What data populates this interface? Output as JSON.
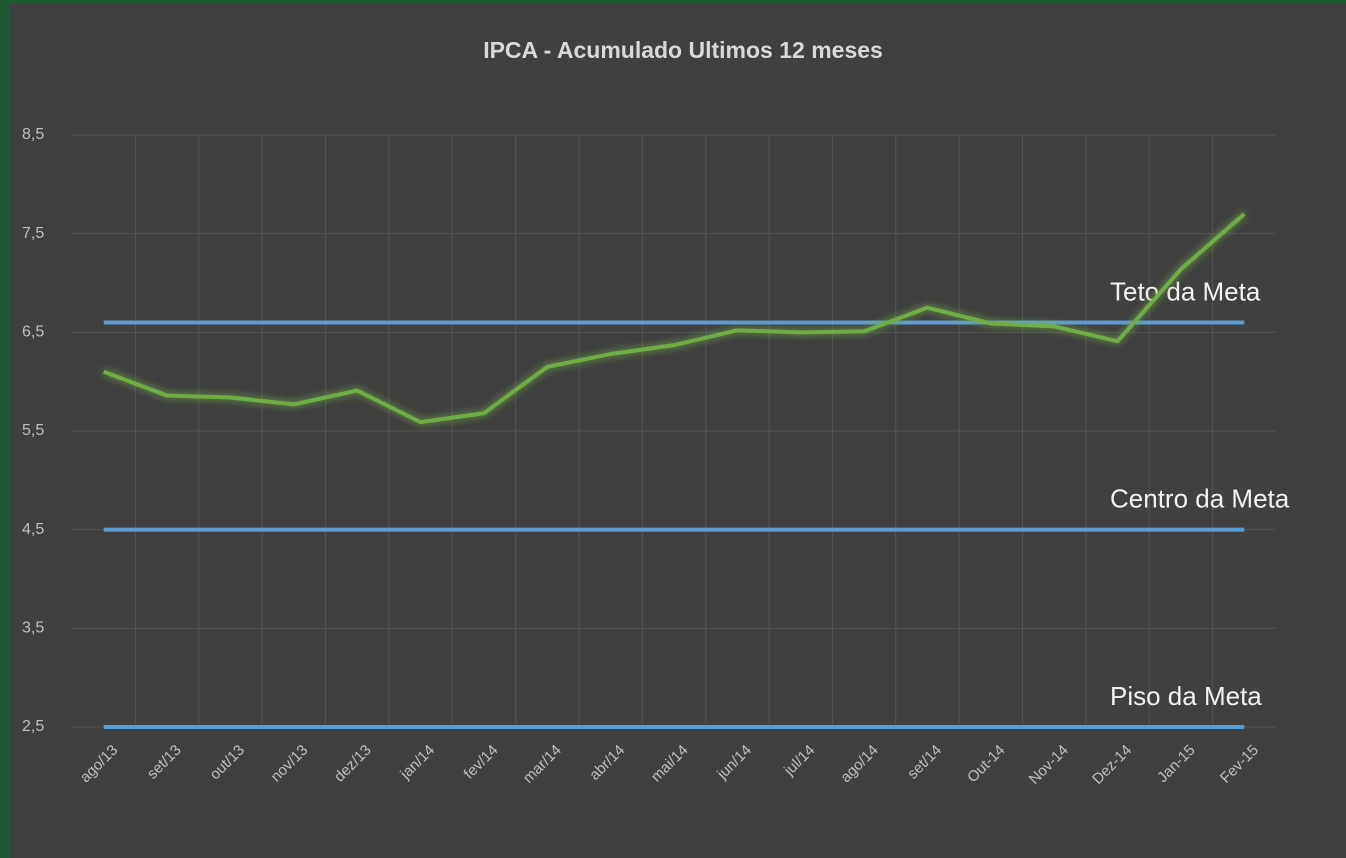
{
  "chart_data": {
    "type": "line",
    "title": "IPCA - Acumulado Ultimos 12 meses",
    "categories": [
      "ago/13",
      "set/13",
      "out/13",
      "nov/13",
      "dez/13",
      "jan/14",
      "fev/14",
      "mar/14",
      "abr/14",
      "mai/14",
      "jun/14",
      "jul/14",
      "ago/14",
      "set/14",
      "Out-14",
      "Nov-14",
      "Dez-14",
      "Jan-15",
      "Fev-15"
    ],
    "series": [
      {
        "color": "#70ad47",
        "glow": true,
        "values": [
          6.1,
          5.86,
          5.84,
          5.77,
          5.91,
          5.59,
          5.68,
          6.15,
          6.28,
          6.37,
          6.52,
          6.5,
          6.51,
          6.75,
          6.59,
          6.56,
          6.41,
          7.14,
          7.7
        ]
      },
      {
        "name": "Teto da Meta",
        "color": "#5b9bd5",
        "values": [
          6.6,
          6.6,
          6.6,
          6.6,
          6.6,
          6.6,
          6.6,
          6.6,
          6.6,
          6.6,
          6.6,
          6.6,
          6.6,
          6.6,
          6.6,
          6.6,
          6.6,
          6.6,
          6.6
        ]
      },
      {
        "name": "Centro da Meta",
        "color": "#5b9bd5",
        "values": [
          4.5,
          4.5,
          4.5,
          4.5,
          4.5,
          4.5,
          4.5,
          4.5,
          4.5,
          4.5,
          4.5,
          4.5,
          4.5,
          4.5,
          4.5,
          4.5,
          4.5,
          4.5,
          4.5
        ]
      },
      {
        "name": "Piso da Meta",
        "color": "#5b9bd5",
        "values": [
          2.5,
          2.5,
          2.5,
          2.5,
          2.5,
          2.5,
          2.5,
          2.5,
          2.5,
          2.5,
          2.5,
          2.5,
          2.5,
          2.5,
          2.5,
          2.5,
          2.5,
          2.5,
          2.5
        ]
      }
    ],
    "ylim": [
      2.5,
      8.5
    ],
    "yticks": [
      {
        "value": 2.5,
        "label": "2,5"
      },
      {
        "value": 3.5,
        "label": "3,5"
      },
      {
        "value": 4.5,
        "label": "4,5"
      },
      {
        "value": 5.5,
        "label": "5,5"
      },
      {
        "value": 6.5,
        "label": "6,5"
      },
      {
        "value": 7.5,
        "label": "7,5"
      },
      {
        "value": 8.5,
        "label": "8,5"
      }
    ],
    "grid": true
  }
}
